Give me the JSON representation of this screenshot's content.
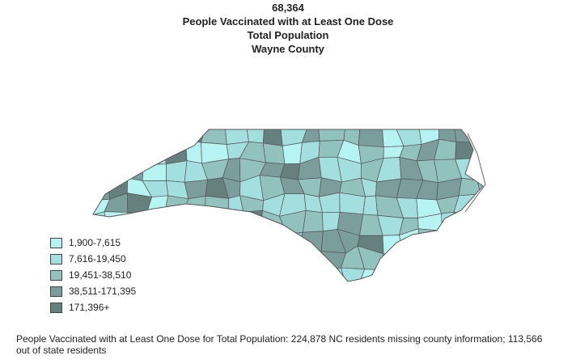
{
  "header": {
    "value": "68,364",
    "title": "People Vaccinated with at Least One Dose",
    "subtitle": "Total Population",
    "region": "Wayne County"
  },
  "legend": {
    "items": [
      {
        "label": "1,900-7,615",
        "color": "#b6f4f4"
      },
      {
        "label": "7,616-19,450",
        "color": "#a4dfdf"
      },
      {
        "label": "19,451-38,510",
        "color": "#91c2be"
      },
      {
        "label": "38,511-171,395",
        "color": "#7b9e9d"
      },
      {
        "label": "171,396+",
        "color": "#667f7f"
      }
    ]
  },
  "footnote": "People Vaccinated with at Least One Dose for Total Population:  224,878 NC residents missing county information; 113,566 out of state residents"
}
